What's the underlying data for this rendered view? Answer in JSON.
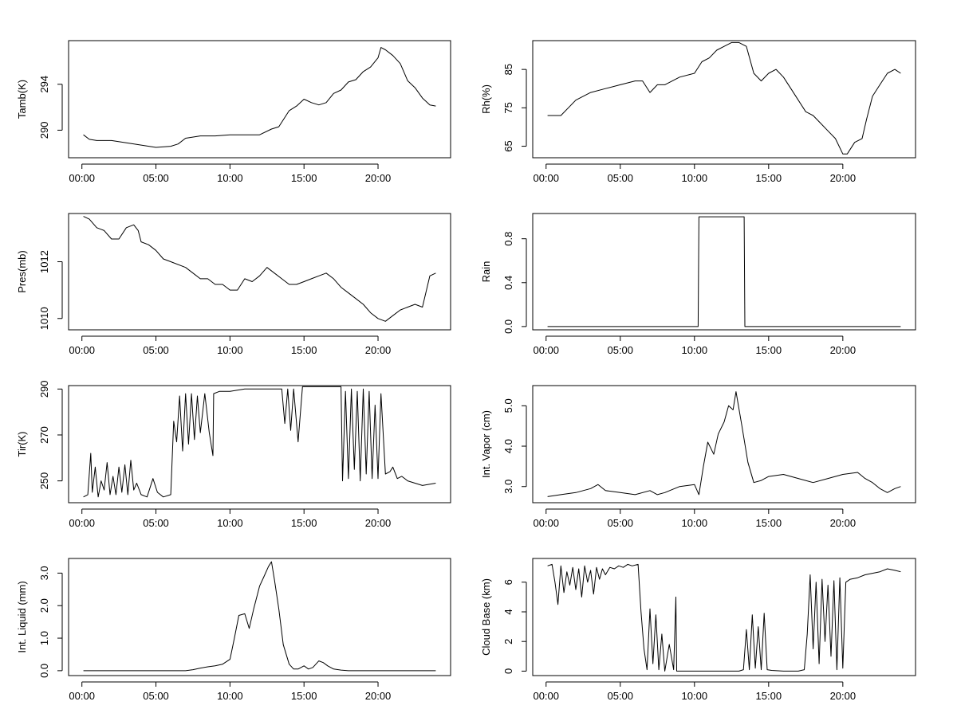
{
  "chart_data": [
    {
      "type": "line",
      "ylabel": "Tamb(K)",
      "xlabel": "",
      "title": "",
      "ylim": [
        287.6,
        297.8
      ],
      "yticks": [
        "290",
        "294"
      ],
      "ytick_values": [
        290,
        294
      ],
      "xlim": [
        -0.9,
        24.9
      ],
      "xticks": [
        "00:00",
        "05:00",
        "10:00",
        "15:00",
        "20:00"
      ],
      "xtick_values": [
        0,
        5,
        10,
        15,
        20
      ],
      "series": [
        {
          "x": [
            0.1,
            0.5,
            1,
            2,
            3,
            4,
            5,
            6,
            6.5,
            7,
            8,
            9,
            10,
            11,
            12,
            12.8,
            13.3,
            14,
            14.5,
            15,
            15.5,
            16,
            16.5,
            17,
            17.5,
            18,
            18.5,
            19,
            19.5,
            20,
            20.2,
            20.5,
            21,
            21.5,
            22,
            22.5,
            23,
            23.5,
            23.9
          ],
          "y": [
            289.6,
            289.2,
            289.1,
            289.1,
            288.9,
            288.7,
            288.5,
            288.6,
            288.8,
            289.3,
            289.5,
            289.5,
            289.6,
            289.6,
            289.6,
            290.1,
            290.3,
            291.7,
            292.1,
            292.7,
            292.4,
            292.2,
            292.4,
            293.2,
            293.5,
            294.2,
            294.4,
            295.1,
            295.5,
            296.3,
            297.2,
            297.0,
            296.5,
            295.8,
            294.3,
            293.7,
            292.8,
            292.2,
            292.1
          ]
        }
      ]
    },
    {
      "type": "line",
      "ylabel": "Rh(%)",
      "xlabel": "",
      "title": "",
      "ylim": [
        62,
        92.5
      ],
      "yticks": [
        "65",
        "75",
        "85"
      ],
      "ytick_values": [
        65,
        75,
        85
      ],
      "xlim": [
        -0.9,
        24.9
      ],
      "xticks": [
        "00:00",
        "05:00",
        "10:00",
        "15:00",
        "20:00"
      ],
      "xtick_values": [
        0,
        5,
        10,
        15,
        20
      ],
      "series": [
        {
          "x": [
            0.1,
            1,
            1.5,
            2,
            3,
            4,
            5,
            6,
            6.5,
            7,
            7.5,
            8,
            9,
            10,
            10.5,
            11,
            11.5,
            12,
            12.5,
            13,
            13.5,
            14,
            14.5,
            15,
            15.5,
            16,
            16.5,
            17,
            17.5,
            18,
            18.5,
            19,
            19.5,
            20,
            20.3,
            20.8,
            21.3,
            21.6,
            22,
            22.5,
            23,
            23.5,
            23.9
          ],
          "y": [
            73,
            73,
            75,
            77,
            79,
            80,
            81,
            82,
            82,
            79,
            81,
            81,
            83,
            84,
            87,
            88,
            90,
            91,
            92,
            92,
            91,
            84,
            82,
            84,
            85,
            83,
            80,
            77,
            74,
            73,
            71,
            69,
            67,
            63,
            63,
            66,
            67,
            72,
            78,
            81,
            84,
            85,
            84
          ]
        }
      ]
    },
    {
      "type": "line",
      "ylabel": "Pres(mb)",
      "xlabel": "",
      "title": "",
      "ylim": [
        1009.6,
        1013.7
      ],
      "yticks": [
        "1010",
        "1012"
      ],
      "ytick_values": [
        1010,
        1012
      ],
      "xlim": [
        -0.9,
        24.9
      ],
      "xticks": [
        "00:00",
        "05:00",
        "10:00",
        "15:00",
        "20:00"
      ],
      "xtick_values": [
        0,
        5,
        10,
        15,
        20
      ],
      "series": [
        {
          "x": [
            0.1,
            0.5,
            1,
            1.5,
            2,
            2.5,
            3,
            3.5,
            3.8,
            4,
            4.5,
            5,
            5.5,
            6,
            7,
            7.5,
            8,
            8.5,
            9,
            9.5,
            10,
            10.5,
            11,
            11.5,
            12,
            12.5,
            13,
            13.5,
            14,
            14.5,
            15,
            15.5,
            16,
            16.5,
            17,
            17.5,
            18,
            18.5,
            19,
            19.5,
            20,
            20.5,
            21,
            21.5,
            22,
            22.5,
            23,
            23.5,
            23.9
          ],
          "y": [
            1013.6,
            1013.5,
            1013.2,
            1013.1,
            1012.8,
            1012.8,
            1013.2,
            1013.3,
            1013.1,
            1012.7,
            1012.6,
            1012.4,
            1012.1,
            1012.0,
            1011.8,
            1011.6,
            1011.4,
            1011.4,
            1011.2,
            1011.2,
            1011.0,
            1011.0,
            1011.4,
            1011.3,
            1011.5,
            1011.8,
            1011.6,
            1011.4,
            1011.2,
            1011.2,
            1011.3,
            1011.4,
            1011.5,
            1011.6,
            1011.4,
            1011.1,
            1010.9,
            1010.7,
            1010.5,
            1010.2,
            1010.0,
            1009.9,
            1010.1,
            1010.3,
            1010.4,
            1010.5,
            1010.4,
            1011.5,
            1011.6
          ]
        }
      ]
    },
    {
      "type": "line",
      "ylabel": "Rain",
      "xlabel": "",
      "title": "",
      "ylim": [
        -0.03,
        1.03
      ],
      "yticks": [
        "0.0",
        "0.4",
        "0.8"
      ],
      "ytick_values": [
        0,
        0.4,
        0.8
      ],
      "xlim": [
        -0.9,
        24.9
      ],
      "xticks": [
        "00:00",
        "05:00",
        "10:00",
        "15:00",
        "20:00"
      ],
      "xtick_values": [
        0,
        5,
        10,
        15,
        20
      ],
      "series": [
        {
          "x": [
            0.1,
            10.25,
            10.3,
            13.35,
            13.4,
            23.9
          ],
          "y": [
            0,
            0,
            1,
            1,
            0,
            0
          ]
        }
      ]
    },
    {
      "type": "line",
      "ylabel": "Tir(K)",
      "xlabel": "",
      "title": "",
      "ylim": [
        240.5,
        291.5
      ],
      "yticks": [
        "250",
        "270",
        "290"
      ],
      "ytick_values": [
        250,
        270,
        290
      ],
      "xlim": [
        -0.9,
        24.9
      ],
      "xticks": [
        "00:00",
        "05:00",
        "10:00",
        "15:00",
        "20:00"
      ],
      "xtick_values": [
        0,
        5,
        10,
        15,
        20
      ],
      "series": [
        {
          "x": [
            0.1,
            0.4,
            0.6,
            0.7,
            0.9,
            1.1,
            1.3,
            1.5,
            1.7,
            1.9,
            2.1,
            2.3,
            2.5,
            2.7,
            2.9,
            3.1,
            3.3,
            3.5,
            3.7,
            4.0,
            4.4,
            4.8,
            5.1,
            5.5,
            6.0,
            6.2,
            6.4,
            6.6,
            6.8,
            7.0,
            7.2,
            7.4,
            7.6,
            7.8,
            8.0,
            8.3,
            8.6,
            8.85,
            8.9,
            9.3,
            10,
            11,
            12,
            13,
            13.5,
            13.7,
            13.9,
            14.1,
            14.3,
            14.6,
            14.9,
            15.2,
            16,
            17,
            17.5,
            17.6,
            17.8,
            18.0,
            18.2,
            18.4,
            18.6,
            18.8,
            19.0,
            19.2,
            19.4,
            19.6,
            19.8,
            20.0,
            20.2,
            20.5,
            20.8,
            21.0,
            21.3,
            21.6,
            22,
            23,
            23.9
          ],
          "y": [
            243,
            244,
            262,
            245,
            256,
            243,
            250,
            246,
            258,
            244,
            252,
            244,
            256,
            245,
            257,
            244,
            259,
            246,
            249,
            244,
            243,
            251,
            245,
            243,
            244,
            276,
            267,
            287,
            263,
            288,
            266,
            288,
            268,
            287,
            271,
            288,
            271,
            261,
            288,
            289,
            289,
            290,
            290,
            290,
            290,
            275,
            290,
            272,
            290,
            267,
            291,
            291,
            291,
            291,
            291,
            250,
            289,
            251,
            290,
            255,
            289,
            250,
            290,
            253,
            289,
            251,
            283,
            251,
            288,
            253,
            254,
            256,
            251,
            252,
            250,
            248,
            249
          ]
        }
      ]
    },
    {
      "type": "line",
      "ylabel": "Int. Vapor (cm)",
      "xlabel": "",
      "title": "",
      "ylim": [
        2.6,
        5.5
      ],
      "yticks": [
        "3.0",
        "4.0",
        "5.0"
      ],
      "ytick_values": [
        3,
        4,
        5
      ],
      "xlim": [
        -0.9,
        24.9
      ],
      "xticks": [
        "00:00",
        "05:00",
        "10:00",
        "15:00",
        "20:00"
      ],
      "xtick_values": [
        0,
        5,
        10,
        15,
        20
      ],
      "series": [
        {
          "x": [
            0.1,
            1,
            2,
            3,
            3.5,
            4,
            5,
            6,
            7,
            7.5,
            8,
            9,
            10,
            10.3,
            10.6,
            10.9,
            11.3,
            11.6,
            12,
            12.3,
            12.6,
            12.8,
            13.2,
            13.6,
            14,
            14.5,
            15,
            16,
            17,
            18,
            19,
            20,
            21,
            21.5,
            22,
            22.5,
            23,
            23.5,
            23.9
          ],
          "y": [
            2.75,
            2.8,
            2.85,
            2.95,
            3.05,
            2.9,
            2.85,
            2.8,
            2.9,
            2.8,
            2.85,
            3.0,
            3.05,
            2.8,
            3.5,
            4.1,
            3.8,
            4.3,
            4.6,
            5.0,
            4.9,
            5.35,
            4.5,
            3.6,
            3.1,
            3.15,
            3.25,
            3.3,
            3.2,
            3.1,
            3.2,
            3.3,
            3.35,
            3.2,
            3.1,
            2.95,
            2.85,
            2.95,
            3.0
          ]
        }
      ]
    },
    {
      "type": "line",
      "ylabel": "Int. Liquid (mm)",
      "xlabel": "",
      "title": "",
      "ylim": [
        -0.15,
        3.45
      ],
      "yticks": [
        "0.0",
        "1.0",
        "2.0",
        "3.0"
      ],
      "ytick_values": [
        0,
        1,
        2,
        3
      ],
      "xlim": [
        -0.9,
        24.9
      ],
      "xticks": [
        "00:00",
        "05:00",
        "10:00",
        "15:00",
        "20:00"
      ],
      "xtick_values": [
        0,
        5,
        10,
        15,
        20
      ],
      "series": [
        {
          "x": [
            0.1,
            7,
            7.5,
            8,
            8.5,
            9,
            9.5,
            10,
            10.3,
            10.6,
            11,
            11.3,
            11.6,
            12,
            12.3,
            12.6,
            12.8,
            13,
            13.3,
            13.6,
            14,
            14.3,
            14.6,
            15,
            15.3,
            15.6,
            16,
            16.3,
            16.6,
            17,
            17.5,
            18,
            23.9
          ],
          "y": [
            0,
            0,
            0.03,
            0.08,
            0.12,
            0.15,
            0.2,
            0.35,
            1.0,
            1.7,
            1.75,
            1.3,
            1.9,
            2.6,
            2.9,
            3.2,
            3.35,
            2.8,
            1.9,
            0.8,
            0.2,
            0.05,
            0.05,
            0.15,
            0.05,
            0.1,
            0.3,
            0.25,
            0.15,
            0.05,
            0.02,
            0,
            0
          ]
        }
      ]
    },
    {
      "type": "line",
      "ylabel": "Cloud Base (km)",
      "xlabel": "",
      "title": "",
      "ylim": [
        -0.3,
        7.6
      ],
      "yticks": [
        "0",
        "2",
        "4",
        "6"
      ],
      "ytick_values": [
        0,
        2,
        4,
        6
      ],
      "xlim": [
        -0.9,
        24.9
      ],
      "xticks": [
        "00:00",
        "05:00",
        "10:00",
        "15:00",
        "20:00"
      ],
      "xtick_values": [
        0,
        5,
        10,
        15,
        20
      ],
      "series": [
        {
          "x": [
            0.1,
            0.4,
            0.6,
            0.8,
            1.0,
            1.2,
            1.4,
            1.6,
            1.8,
            2.0,
            2.2,
            2.4,
            2.6,
            2.8,
            3.0,
            3.2,
            3.4,
            3.6,
            3.8,
            4.0,
            4.3,
            4.6,
            4.9,
            5.2,
            5.5,
            5.8,
            6.2,
            6.4,
            6.6,
            6.8,
            7.0,
            7.2,
            7.4,
            7.6,
            7.8,
            8.0,
            8.3,
            8.6,
            8.75,
            8.8,
            9.0,
            9.5,
            10,
            11,
            12,
            13,
            13.3,
            13.5,
            13.7,
            13.9,
            14.1,
            14.3,
            14.5,
            14.7,
            14.9,
            15.2,
            16,
            17,
            17.4,
            17.6,
            17.8,
            18.0,
            18.2,
            18.4,
            18.6,
            18.8,
            19.0,
            19.2,
            19.4,
            19.6,
            19.8,
            20.0,
            20.2,
            20.5,
            21.0,
            21.5,
            22.0,
            22.5,
            23.0,
            23.5,
            23.9
          ],
          "y": [
            7.1,
            7.2,
            6.0,
            4.5,
            7.1,
            5.3,
            6.7,
            5.8,
            7.0,
            5.5,
            6.9,
            5.0,
            7.1,
            6.0,
            6.8,
            5.2,
            7.0,
            6.2,
            6.9,
            6.5,
            7.0,
            6.9,
            7.1,
            7.0,
            7.2,
            7.1,
            7.2,
            4.0,
            1.5,
            0.1,
            4.2,
            0.5,
            3.8,
            0.1,
            2.5,
            0,
            1.8,
            0.1,
            5.0,
            0,
            0,
            0,
            0,
            0,
            0,
            0,
            0.1,
            2.8,
            0.1,
            3.8,
            0.2,
            3.0,
            0.1,
            3.9,
            0.1,
            0.05,
            0,
            0,
            0.1,
            2.5,
            6.5,
            1.5,
            6.0,
            0.5,
            6.2,
            2.0,
            5.8,
            1.0,
            6.1,
            0.1,
            6.3,
            0.2,
            6.0,
            6.2,
            6.3,
            6.5,
            6.6,
            6.7,
            6.9,
            6.8,
            6.7
          ]
        }
      ]
    }
  ]
}
